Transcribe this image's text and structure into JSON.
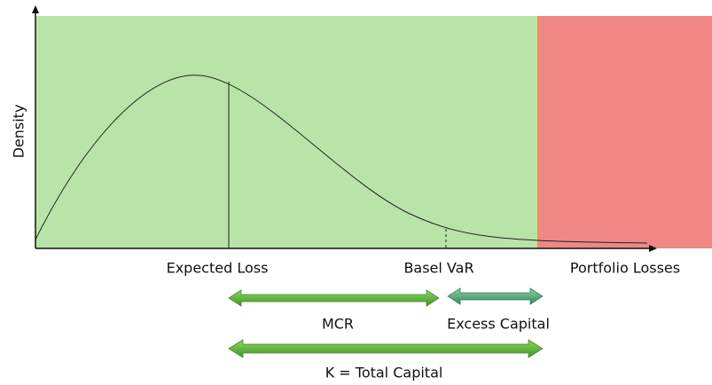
{
  "axis": {
    "y_label": "Density",
    "x_label": "Portfolio Losses"
  },
  "markers": {
    "expected_loss": "Expected Loss",
    "basel_var": "Basel VaR"
  },
  "spans": {
    "mcr": "MCR",
    "excess": "Excess Capital",
    "total": "K = Total Capital"
  }
}
